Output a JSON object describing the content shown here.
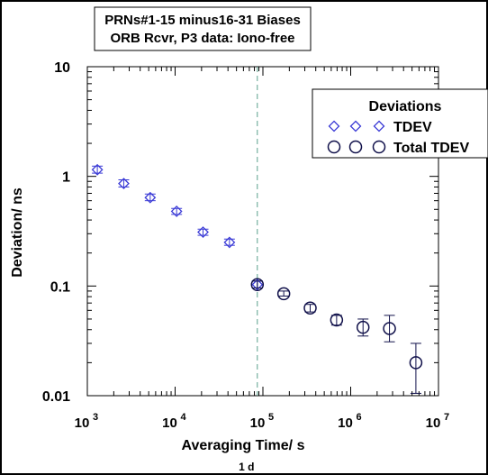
{
  "chart_data": {
    "type": "scatter",
    "title": [
      "PRNs#1-15 minus16-31 Biases",
      "ORB Rcvr, P3 data: Iono-free"
    ],
    "xlabel": "Averaging Time/ s",
    "ylabel": "Deviation/ ns",
    "x_scale": "log",
    "y_scale": "log",
    "xlim": [
      1000,
      10000000
    ],
    "ylim": [
      0.01,
      10
    ],
    "x_ticks": [
      {
        "v": 1000,
        "base": "10",
        "exp": "3"
      },
      {
        "v": 10000,
        "base": "10",
        "exp": "4"
      },
      {
        "v": 100000,
        "base": "10",
        "exp": "5"
      },
      {
        "v": 1000000,
        "base": "10",
        "exp": "6"
      },
      {
        "v": 10000000,
        "base": "10",
        "exp": "7"
      }
    ],
    "y_ticks": [
      {
        "v": 10,
        "label": "10"
      },
      {
        "v": 1,
        "label": "1"
      },
      {
        "v": 0.1,
        "label": "0.1"
      },
      {
        "v": 0.01,
        "label": "0.01"
      }
    ],
    "grid": false,
    "legend": {
      "title": "Deviations",
      "placement": "top-right",
      "entries": [
        {
          "label": "TDEV",
          "marker": "diamond",
          "color": "#3b3bd6"
        },
        {
          "label": "Total TDEV",
          "marker": "circle",
          "color": "#10104a"
        }
      ]
    },
    "vline": {
      "x": 86400,
      "label": "1 d",
      "color": "#5aa08c"
    },
    "series": [
      {
        "name": "TDEV",
        "marker": "diamond",
        "color": "#3b3bd6",
        "points": [
          {
            "x": 1300,
            "y": 1.15,
            "lo": 1.07,
            "hi": 1.24
          },
          {
            "x": 2600,
            "y": 0.86,
            "lo": 0.8,
            "hi": 0.93
          },
          {
            "x": 5200,
            "y": 0.64,
            "lo": 0.6,
            "hi": 0.69
          },
          {
            "x": 10400,
            "y": 0.48,
            "lo": 0.45,
            "hi": 0.51
          },
          {
            "x": 20800,
            "y": 0.31,
            "lo": 0.29,
            "hi": 0.33
          },
          {
            "x": 41600,
            "y": 0.25,
            "lo": 0.235,
            "hi": 0.268
          },
          {
            "x": 86400,
            "y": 0.103,
            "lo": 0.096,
            "hi": 0.111
          }
        ]
      },
      {
        "name": "Total TDEV",
        "marker": "circle",
        "color": "#10104a",
        "points": [
          {
            "x": 86400,
            "y": 0.103,
            "lo": 0.096,
            "hi": 0.111
          },
          {
            "x": 172800,
            "y": 0.085,
            "lo": 0.081,
            "hi": 0.09
          },
          {
            "x": 345600,
            "y": 0.063,
            "lo": 0.058,
            "hi": 0.068
          },
          {
            "x": 691200,
            "y": 0.049,
            "lo": 0.044,
            "hi": 0.054
          },
          {
            "x": 1382400,
            "y": 0.042,
            "lo": 0.035,
            "hi": 0.05
          },
          {
            "x": 2764800,
            "y": 0.041,
            "lo": 0.031,
            "hi": 0.054
          },
          {
            "x": 5529600,
            "y": 0.02,
            "lo": 0.0105,
            "hi": 0.03
          }
        ]
      }
    ]
  }
}
